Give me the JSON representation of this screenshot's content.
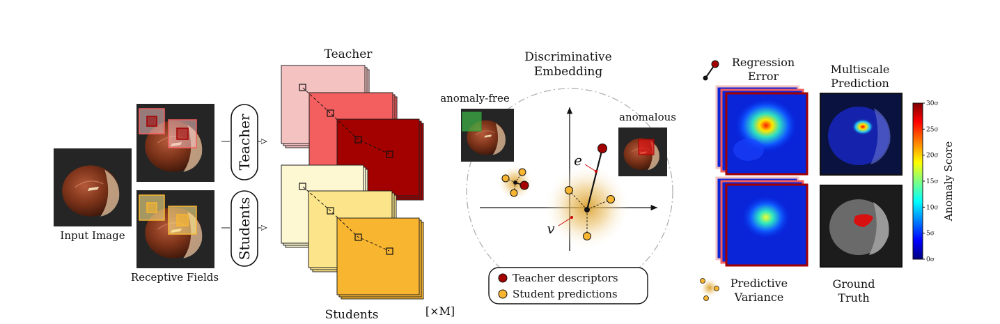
{
  "labels": {
    "input_image": "Input Image",
    "receptive_fields": "Receptive Fields",
    "teacher_box": "Teacher",
    "students_box": "Students",
    "teacher_stack": "Teacher",
    "students_stack": "Students",
    "times_m": "[×M]",
    "embedding_line1": "Discriminative",
    "embedding_line2": "Embedding",
    "anomaly_free": "anomaly-free",
    "anomalous": "anomalous",
    "e": "e",
    "v": "v",
    "regression_error_line1": "Regression",
    "regression_error_line2": "Error",
    "multiscale_line1": "Multiscale",
    "multiscale_line2": "Prediction",
    "predictive_line1": "Predictive",
    "predictive_line2": "Variance",
    "ground_truth_line1": "Ground",
    "ground_truth_line2": "Truth",
    "anomaly_score": "Anomaly Score"
  },
  "legend": {
    "teacher": "Teacher descriptors",
    "student": "Student predictions"
  },
  "colorbar_ticks": [
    "30σ",
    "25σ",
    "20σ",
    "15σ",
    "10σ",
    "5σ",
    "0σ"
  ],
  "colors": {
    "teacher_dark": "#a30000",
    "teacher_mid": "#f35f5f",
    "teacher_light": "#f5c2c2",
    "student_dark": "#f8b530",
    "student_mid": "#fbe48a",
    "student_light": "#fdf8d2",
    "nut_brown": "#7a3218",
    "dark_bg": "#252525"
  }
}
